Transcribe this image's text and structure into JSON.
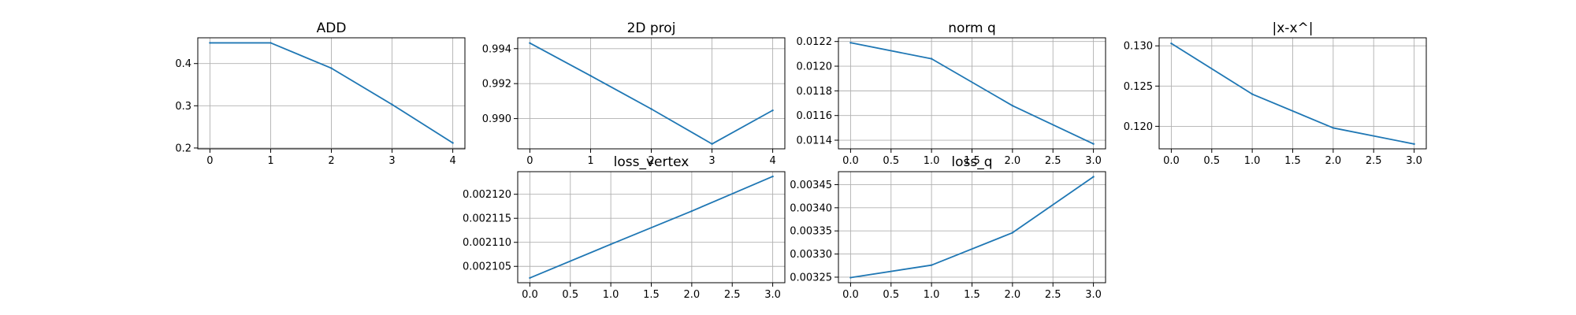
{
  "series_color": "#1f77b4",
  "chart_data": [
    {
      "type": "line",
      "title": "ADD",
      "x": [
        0,
        1,
        2,
        3,
        4
      ],
      "y": [
        0.449,
        0.449,
        0.389,
        0.303,
        0.212
      ],
      "xlim": [
        -0.2,
        4.2
      ],
      "ylim": [
        0.198,
        0.461
      ],
      "xticks": [
        0,
        1,
        2,
        3,
        4
      ],
      "xtick_labels": [
        "0",
        "1",
        "2",
        "3",
        "4"
      ],
      "yticks": [
        0.2,
        0.3,
        0.4
      ],
      "ytick_labels": [
        "0.2",
        "0.3",
        "0.4"
      ],
      "grid": true
    },
    {
      "type": "line",
      "title": "2D proj",
      "x": [
        0,
        1,
        2,
        3,
        4
      ],
      "y": [
        0.99432,
        0.99245,
        0.99055,
        0.98855,
        0.99047
      ],
      "xlim": [
        -0.2,
        4.2
      ],
      "ylim": [
        0.98827,
        0.99462
      ],
      "xticks": [
        0,
        1,
        2,
        3,
        4
      ],
      "xtick_labels": [
        "0",
        "1",
        "2",
        "3",
        "4"
      ],
      "yticks": [
        0.99,
        0.992,
        0.994
      ],
      "ytick_labels": [
        "0.990",
        "0.992",
        "0.994"
      ],
      "grid": true
    },
    {
      "type": "line",
      "title": "norm q",
      "x": [
        0,
        1,
        2,
        3
      ],
      "y": [
        0.01219,
        0.01206,
        0.01168,
        0.01137
      ],
      "xlim": [
        -0.15,
        3.15
      ],
      "ylim": [
        0.01133,
        0.01223
      ],
      "xticks": [
        0,
        0.5,
        1,
        1.5,
        2,
        2.5,
        3
      ],
      "xtick_labels": [
        "0.0",
        "0.5",
        "1.0",
        "1.5",
        "2.0",
        "2.5",
        "3.0"
      ],
      "yticks": [
        0.0114,
        0.0116,
        0.0118,
        0.012,
        0.0122
      ],
      "ytick_labels": [
        "0.0114",
        "0.0116",
        "0.0118",
        "0.0120",
        "0.0122"
      ],
      "grid": true
    },
    {
      "type": "line",
      "title": "|x-x^|",
      "x": [
        0,
        1,
        2,
        3
      ],
      "y": [
        0.1303,
        0.124,
        0.1198,
        0.1178
      ],
      "xlim": [
        -0.15,
        3.15
      ],
      "ylim": [
        0.1172,
        0.131
      ],
      "xticks": [
        0,
        0.5,
        1,
        1.5,
        2,
        2.5,
        3
      ],
      "xtick_labels": [
        "0.0",
        "0.5",
        "1.0",
        "1.5",
        "2.0",
        "2.5",
        "3.0"
      ],
      "yticks": [
        0.12,
        0.125,
        0.13
      ],
      "ytick_labels": [
        "0.120",
        "0.125",
        "0.130"
      ],
      "grid": true
    },
    {
      "type": "line",
      "title": "loss_vertex",
      "x": [
        0,
        1,
        2,
        3
      ],
      "y": [
        0.0021026,
        0.0021096,
        0.0021165,
        0.0021237
      ],
      "xlim": [
        -0.15,
        3.15
      ],
      "ylim": [
        0.0021016,
        0.0021247
      ],
      "xticks": [
        0,
        0.5,
        1,
        1.5,
        2,
        2.5,
        3
      ],
      "xtick_labels": [
        "0.0",
        "0.5",
        "1.0",
        "1.5",
        "2.0",
        "2.5",
        "3.0"
      ],
      "yticks": [
        0.002105,
        0.00211,
        0.002115,
        0.00212
      ],
      "ytick_labels": [
        "0.002105",
        "0.002110",
        "0.002115",
        "0.002120"
      ],
      "grid": true
    },
    {
      "type": "line",
      "title": "loss_q",
      "x": [
        0,
        1,
        2,
        3
      ],
      "y": [
        0.003249,
        0.003276,
        0.003346,
        0.003467
      ],
      "xlim": [
        -0.15,
        3.15
      ],
      "ylim": [
        0.003238,
        0.003478
      ],
      "xticks": [
        0,
        0.5,
        1,
        1.5,
        2,
        2.5,
        3
      ],
      "xtick_labels": [
        "0.0",
        "0.5",
        "1.0",
        "1.5",
        "2.0",
        "2.5",
        "3.0"
      ],
      "yticks": [
        0.00325,
        0.0033,
        0.00335,
        0.0034,
        0.00345
      ],
      "ytick_labels": [
        "0.00325",
        "0.00330",
        "0.00335",
        "0.00340",
        "0.00345"
      ],
      "grid": true
    }
  ]
}
